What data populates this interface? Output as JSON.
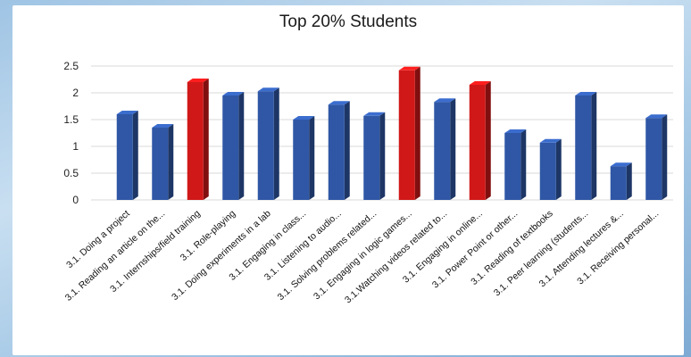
{
  "chart_data": {
    "type": "bar",
    "title": "Top 20% Students",
    "xlabel": "",
    "ylabel": "",
    "ylim": [
      0,
      2.5
    ],
    "yticks": [
      "0",
      "0.5",
      "1",
      "1.5",
      "2",
      "2.5"
    ],
    "grid": true,
    "style": "3d-bars",
    "colors": {
      "default": "#2f57a5",
      "highlight": "#d01818"
    },
    "categories": [
      "3.1.  Doing a project",
      "3.1.  Reading an article on the...",
      "3.1.  Internships/field training",
      "3.1.   Role-playing",
      "3.1.  Doing experiments in a lab",
      "3.1.  Engaging in class...",
      "3.1.  Listening to audio...",
      "3.1.  Solving problems related...",
      "3.1.  Engaging in logic games...",
      "3.1.Watching videos related to...",
      "3.1.  Engaging in online...",
      "3.1.  Power Point or other...",
      "3.1.  Reading of textbooks",
      "3.1.  Peer learning (students...",
      "3.1.  Attending lectures &...",
      "3.1.  Receiving personal..."
    ],
    "values": [
      1.6,
      1.35,
      2.2,
      1.95,
      2.03,
      1.5,
      1.78,
      1.57,
      2.42,
      1.83,
      2.15,
      1.25,
      1.07,
      1.95,
      0.63,
      1.53
    ],
    "highlighted": [
      false,
      false,
      true,
      false,
      false,
      false,
      false,
      false,
      true,
      false,
      true,
      false,
      false,
      false,
      false,
      false
    ]
  }
}
